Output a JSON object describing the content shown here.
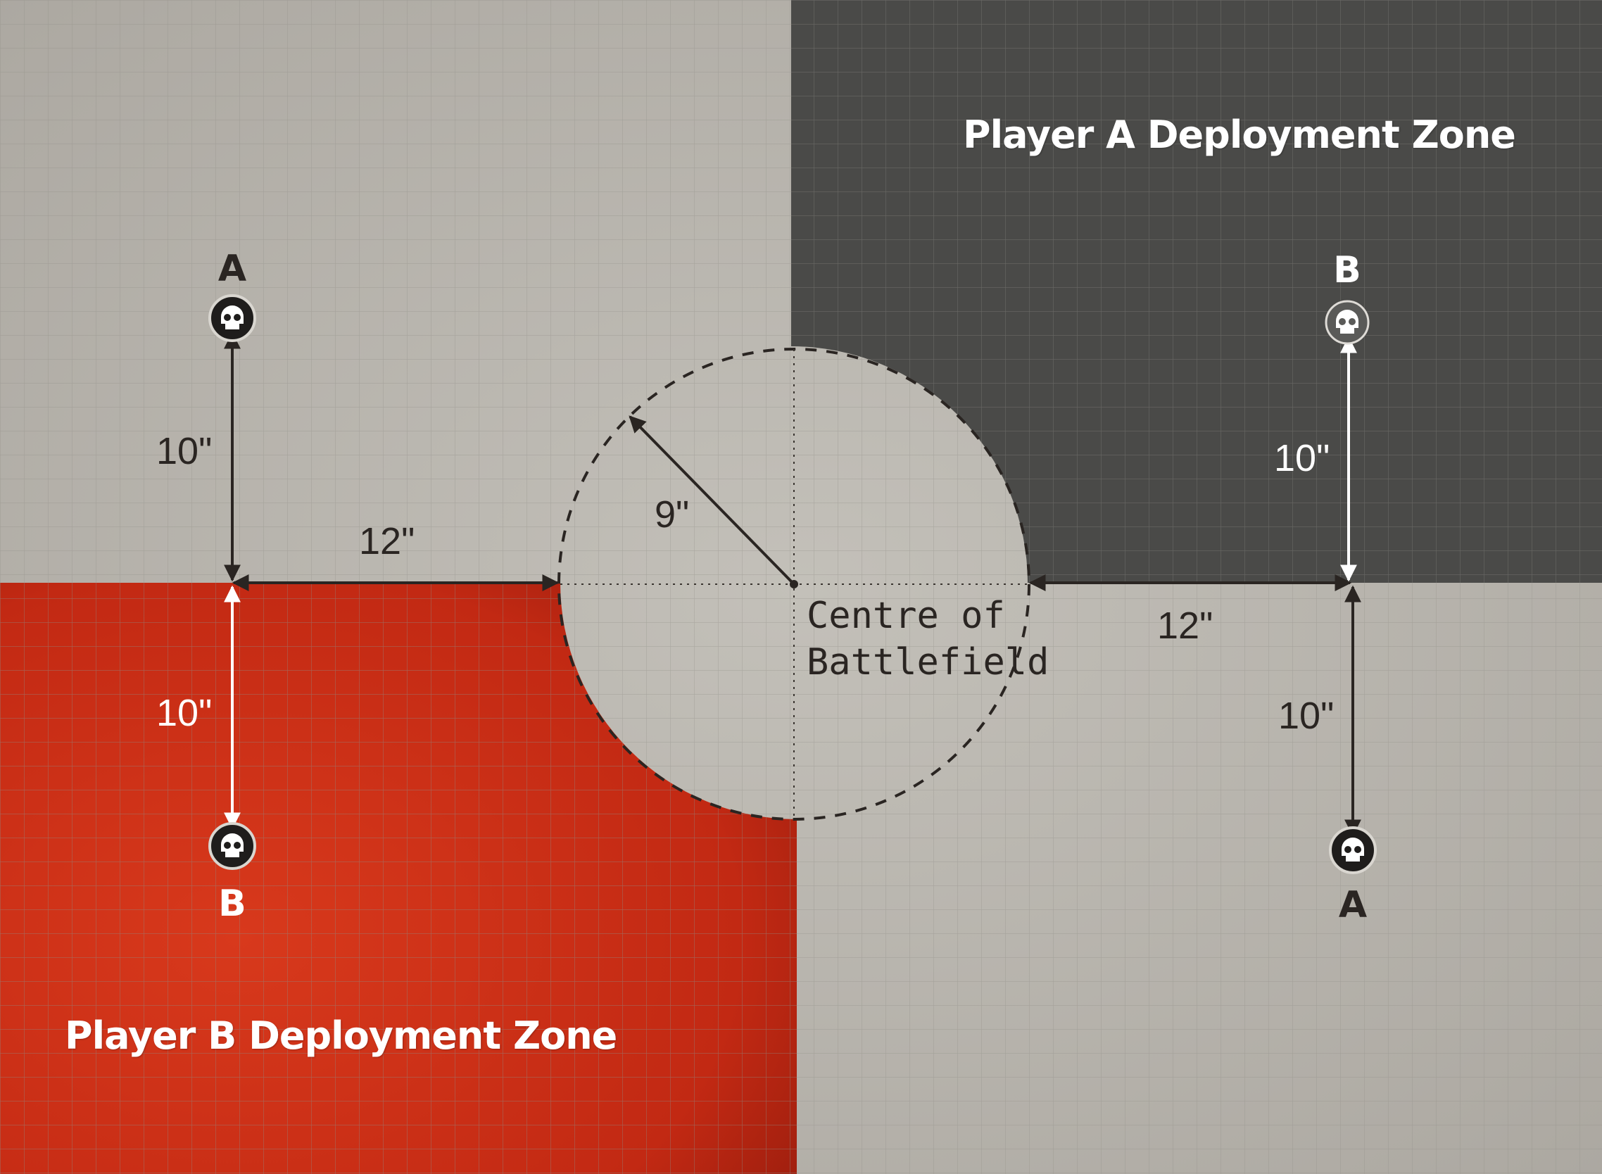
{
  "zones": {
    "player_a": {
      "label": "Player A Deployment Zone",
      "color": "#4a4a48"
    },
    "player_b": {
      "label": "Player B Deployment Zone",
      "color": "#c72a14"
    }
  },
  "centre": {
    "line1": "Centre of",
    "line2": "Battlefield"
  },
  "dimensions": {
    "radius": "9\"",
    "left_horizontal": "12\"",
    "right_horizontal": "12\"",
    "left_upper_vertical": "10\"",
    "left_lower_vertical": "10\"",
    "right_upper_vertical": "10\"",
    "right_lower_vertical": "10\""
  },
  "objectives": {
    "left_top": "A",
    "left_bottom": "B",
    "right_top": "B",
    "right_bottom": "A"
  },
  "icons": {
    "objective_marker": "skull-icon"
  },
  "colors": {
    "neutral": "#bdb9b2",
    "grid": "#8f8b85",
    "arrow_dark": "#2a2522",
    "arrow_light": "#ffffff"
  }
}
